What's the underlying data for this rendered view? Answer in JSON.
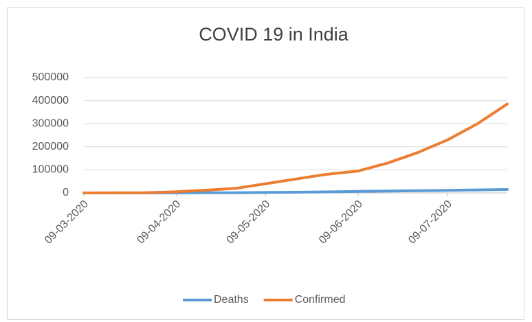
{
  "chart_data": {
    "type": "line",
    "title": "COVID 19 in India",
    "x": [
      "09-03-2020",
      "19-03-2020",
      "29-03-2020",
      "09-04-2020",
      "19-04-2020",
      "29-04-2020",
      "09-05-2020",
      "19-05-2020",
      "29-05-2020",
      "09-06-2020",
      "19-06-2020",
      "29-06-2020",
      "09-07-2020",
      "19-07-2020",
      "29-07-2020"
    ],
    "series": [
      {
        "name": "Deaths",
        "color": "#5b9bd5",
        "values": [
          0,
          0,
          0,
          200,
          500,
          1000,
          2000,
          3000,
          4500,
          6500,
          8000,
          9500,
          11000,
          13000,
          15000
        ]
      },
      {
        "name": "Confirmed",
        "color": "#ed7d31",
        "values": [
          0,
          200,
          1000,
          5000,
          12000,
          20000,
          40000,
          60000,
          80000,
          95000,
          130000,
          175000,
          230000,
          300000,
          385000
        ]
      }
    ],
    "xlim": [
      "09-03-2020",
      "29-07-2020"
    ],
    "xticks": [
      "09-03-2020",
      "09-04-2020",
      "09-05-2020",
      "09-06-2020",
      "09-07-2020"
    ],
    "ylim": [
      0,
      500000
    ],
    "yticks": [
      0,
      100000,
      200000,
      300000,
      400000,
      500000
    ],
    "grid": true,
    "legend": "bottom"
  }
}
